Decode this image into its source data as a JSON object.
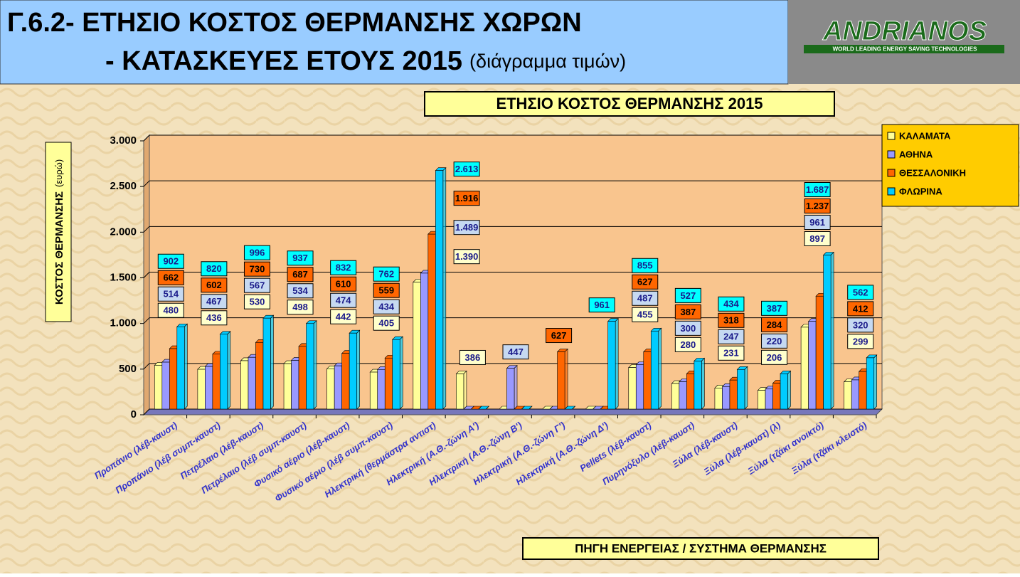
{
  "header": {
    "title_line1": "Γ.6.2- ΕΤΗΣΙΟ  ΚΟΣΤΟΣ  ΘΕΡΜΑΝΣΗΣ  ΧΩΡΩΝ",
    "title_line2": "- ΚΑΤΑΣΚΕΥΕΣ  ΕΤΟΥΣ 2015",
    "title_note": "(διάγραμμα τιμών)"
  },
  "logo": {
    "name": "ANDRIANOS",
    "tagline": "WORLD LEADING ENERGY SAVING TECHNOLOGIES"
  },
  "chart_data": {
    "type": "bar",
    "title": "ΕΤΗΣΙΟ  ΚΟΣΤΟΣ  ΘΕΡΜΑΝΣΗΣ  2015",
    "y_label": "ΚΟΣΤΟΣ ΘΕΡΜΑΝΣΗΣ",
    "y_label_unit": "(ευρώ)",
    "x_label": "ΠΗΓΗ  ΕΝΕΡΓΕΙΑΣ / ΣΥΣΤΗΜΑ ΘΕΡΜΑΝΣΗΣ",
    "categories": [
      "Προπάνιο (λέβ-καυστ)",
      "Προπάνιο (λέβ συμπ-καυστ)",
      "Πετρέλαιο (λέβ-καυστ)",
      "Πετρέλαιο (λέβ συμπ-καυστ)",
      "Φυσικό αέριο (λέβ-καυστ)",
      "Φυσικό αέριο (λέβ συμπ-καυστ)",
      "Ηλεκτρική (θερμάστρα αντιστ)",
      "Ηλεκτρική  (Α.Θ.-ζώνη Α')",
      "Ηλεκτρική  (Α.Θ.-ζώνη Β')",
      "Ηλεκτρική  (Α.Θ.-ζώνη Γ')",
      "Ηλεκτρική (Α.Θ.-ζώνη Δ')",
      "Pellets  (λέβ-καυστ)",
      "Πυρηνόξυλο (λέβ-καυστ)",
      "Ξύλα  (λέβ-καυστ)",
      "Ξύλα  (λέβ-καυστ)  (λ)",
      "Ξύλα (τζάκι ανοικτό)",
      "Ξύλα (τζάκι κλειστό)"
    ],
    "series": [
      {
        "name": "ΚΑΛΑΜΑΤΑ",
        "color": "#ffff99",
        "label_color": "#ffffcc",
        "values": [
          480,
          436,
          530,
          498,
          442,
          405,
          1390,
          386,
          0,
          0,
          0,
          455,
          280,
          231,
          206,
          897,
          299
        ],
        "value_labels": [
          "480",
          "436",
          "530",
          "498",
          "442",
          "405",
          "1.390",
          "386",
          null,
          null,
          null,
          "455",
          "280",
          "231",
          "206",
          "897",
          "299"
        ]
      },
      {
        "name": "ΑΘΗΝΑ",
        "color": "#9999ff",
        "label_color": "#c6d9f1",
        "values": [
          514,
          467,
          567,
          534,
          474,
          434,
          1489,
          0,
          447,
          0,
          0,
          487,
          300,
          247,
          220,
          961,
          320
        ],
        "value_labels": [
          "514",
          "467",
          "567",
          "534",
          "474",
          "434",
          "1.489",
          null,
          "447",
          null,
          null,
          "487",
          "300",
          "247",
          "220",
          "961",
          "320"
        ]
      },
      {
        "name": "ΘΕΣΣΑΛΟΝΙΚΗ",
        "color": "#ff6600",
        "label_color": "#ff6600",
        "values": [
          662,
          602,
          730,
          687,
          610,
          559,
          1916,
          0,
          0,
          627,
          0,
          627,
          387,
          318,
          284,
          1237,
          412
        ],
        "value_labels": [
          "662",
          "602",
          "730",
          "687",
          "610",
          "559",
          "1.916",
          null,
          null,
          "627",
          null,
          "627",
          "387",
          "318",
          "284",
          "1.237",
          "412"
        ]
      },
      {
        "name": "ΦΛΩΡΙΝΑ",
        "color": "#00ccff",
        "label_color": "#00ffff",
        "values": [
          902,
          820,
          996,
          937,
          832,
          762,
          2613,
          0,
          0,
          0,
          961,
          855,
          527,
          434,
          387,
          1687,
          562
        ],
        "value_labels": [
          "902",
          "820",
          "996",
          "937",
          "832",
          "762",
          "2.613",
          null,
          null,
          null,
          "961",
          "855",
          "527",
          "434",
          "387",
          "1.687",
          "562"
        ]
      }
    ],
    "ylim": [
      0,
      3000
    ],
    "yticks": [
      0,
      500,
      {
        "value": 1000,
        "label": "1.000"
      },
      {
        "value": 1500,
        "label": "1.500"
      },
      {
        "value": 2000,
        "label": "2.000"
      },
      {
        "value": 2500,
        "label": "2.500"
      },
      {
        "value": 3000,
        "label": "3.000"
      }
    ],
    "grid": true,
    "legend": "top-right"
  }
}
